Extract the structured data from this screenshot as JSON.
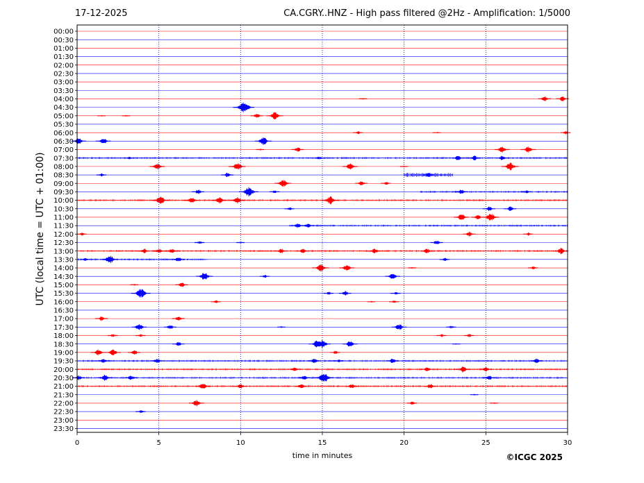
{
  "header": {
    "date": "17-12-2025",
    "title": "CA.CGRY..HNZ - High pass filtered @2Hz - Amplification: 1/5000"
  },
  "footer": {
    "copyright": "©ICGC 2025"
  },
  "colors": {
    "red": "#ff0000",
    "blue": "#0000ff",
    "grid": "#000080",
    "frame": "#000000"
  },
  "chart_data": {
    "type": "line",
    "title": "CA.CGRY..HNZ - High pass filtered @2Hz - Amplification: 1/5000",
    "xlabel": "time in minutes",
    "ylabel": "UTC (local time = UTC + 01:00)",
    "xlim": [
      0,
      30
    ],
    "x_ticks": [
      0,
      5,
      10,
      15,
      20,
      25,
      30
    ],
    "x_gridlines": [
      5,
      10,
      15,
      20,
      25
    ],
    "grid": true,
    "row_labels": [
      "00:00",
      "00:30",
      "01:00",
      "01:30",
      "02:00",
      "02:30",
      "03:00",
      "03:30",
      "04:00",
      "04:30",
      "05:00",
      "05:30",
      "06:00",
      "06:30",
      "07:00",
      "07:30",
      "08:00",
      "08:30",
      "09:00",
      "09:30",
      "10:00",
      "10:30",
      "11:00",
      "11:30",
      "12:00",
      "12:30",
      "13:00",
      "13:30",
      "14:00",
      "14:30",
      "15:00",
      "15:30",
      "16:00",
      "16:30",
      "17:00",
      "17:30",
      "18:00",
      "18:30",
      "19:00",
      "19:30",
      "20:00",
      "20:30",
      "21:00",
      "21:30",
      "22:00",
      "22:30",
      "23:00",
      "23:30"
    ],
    "series": [
      {
        "name": "",
        "color": "red"
      },
      {
        "name": "",
        "color": "blue"
      }
    ],
    "events": [
      {
        "row": "04:00",
        "t": 28.6,
        "amp": 3
      },
      {
        "row": "04:00",
        "t": 29.7,
        "amp": 3
      },
      {
        "row": "04:00",
        "t": 17.5,
        "amp": 1
      },
      {
        "row": "04:30",
        "t": 10.2,
        "amp": 7
      },
      {
        "row": "05:00",
        "t": 12.1,
        "amp": 5
      },
      {
        "row": "05:00",
        "t": 11.0,
        "amp": 3
      },
      {
        "row": "05:00",
        "t": 1.5,
        "amp": 1
      },
      {
        "row": "05:00",
        "t": 3.0,
        "amp": 1
      },
      {
        "row": "06:00",
        "t": 17.2,
        "amp": 2
      },
      {
        "row": "06:00",
        "t": 22.0,
        "amp": 1
      },
      {
        "row": "06:00",
        "t": 29.9,
        "amp": 2
      },
      {
        "row": "06:30",
        "t": 0.1,
        "amp": 4
      },
      {
        "row": "06:30",
        "t": 1.6,
        "amp": 4
      },
      {
        "row": "06:30",
        "t": 11.4,
        "amp": 5
      },
      {
        "row": "07:00",
        "t": 13.5,
        "amp": 3
      },
      {
        "row": "07:00",
        "t": 26.0,
        "amp": 4
      },
      {
        "row": "07:00",
        "t": 27.6,
        "amp": 4
      },
      {
        "row": "07:00",
        "t": 11.2,
        "amp": 1
      },
      {
        "row": "07:30",
        "t": 3.2,
        "amp": 2
      },
      {
        "row": "07:30",
        "t": 14.8,
        "amp": 2
      },
      {
        "row": "07:30",
        "t": 23.3,
        "amp": 3
      },
      {
        "row": "07:30",
        "t": 24.3,
        "amp": 3
      },
      {
        "row": "07:30",
        "t": 26.0,
        "amp": 3
      },
      {
        "row": "08:00",
        "t": 4.9,
        "amp": 4
      },
      {
        "row": "08:00",
        "t": 9.8,
        "amp": 5
      },
      {
        "row": "08:00",
        "t": 16.7,
        "amp": 4
      },
      {
        "row": "08:00",
        "t": 26.5,
        "amp": 5
      },
      {
        "row": "08:00",
        "t": 20.0,
        "amp": 1
      },
      {
        "row": "08:30",
        "t": 1.5,
        "amp": 2
      },
      {
        "row": "08:30",
        "t": 9.2,
        "amp": 3
      },
      {
        "row": "08:30",
        "t": 21.5,
        "amp": 3
      },
      {
        "row": "09:00",
        "t": 12.6,
        "amp": 5
      },
      {
        "row": "09:00",
        "t": 17.4,
        "amp": 3
      },
      {
        "row": "09:00",
        "t": 18.9,
        "amp": 2
      },
      {
        "row": "09:30",
        "t": 7.4,
        "amp": 3
      },
      {
        "row": "09:30",
        "t": 10.5,
        "amp": 6
      },
      {
        "row": "09:30",
        "t": 12.1,
        "amp": 2
      },
      {
        "row": "09:30",
        "t": 23.5,
        "amp": 3
      },
      {
        "row": "09:30",
        "t": 27.5,
        "amp": 2
      },
      {
        "row": "10:00",
        "t": 5.1,
        "amp": 5
      },
      {
        "row": "10:00",
        "t": 7.0,
        "amp": 4
      },
      {
        "row": "10:00",
        "t": 8.7,
        "amp": 4
      },
      {
        "row": "10:00",
        "t": 9.8,
        "amp": 4
      },
      {
        "row": "10:00",
        "t": 15.5,
        "amp": 5
      },
      {
        "row": "10:30",
        "t": 13.0,
        "amp": 2
      },
      {
        "row": "10:30",
        "t": 25.2,
        "amp": 3
      },
      {
        "row": "10:30",
        "t": 26.5,
        "amp": 3
      },
      {
        "row": "11:00",
        "t": 23.5,
        "amp": 4
      },
      {
        "row": "11:00",
        "t": 24.5,
        "amp": 3
      },
      {
        "row": "11:00",
        "t": 25.3,
        "amp": 5
      },
      {
        "row": "11:30",
        "t": 13.5,
        "amp": 3
      },
      {
        "row": "11:30",
        "t": 14.1,
        "amp": 3
      },
      {
        "row": "12:00",
        "t": 0.3,
        "amp": 2
      },
      {
        "row": "12:00",
        "t": 24.0,
        "amp": 3
      },
      {
        "row": "12:00",
        "t": 27.6,
        "amp": 2
      },
      {
        "row": "12:30",
        "t": 7.5,
        "amp": 2
      },
      {
        "row": "12:30",
        "t": 22.0,
        "amp": 3
      },
      {
        "row": "12:30",
        "t": 10.0,
        "amp": 1
      },
      {
        "row": "13:00",
        "t": 4.1,
        "amp": 3
      },
      {
        "row": "13:00",
        "t": 5.0,
        "amp": 3
      },
      {
        "row": "13:00",
        "t": 5.8,
        "amp": 3
      },
      {
        "row": "13:00",
        "t": 12.5,
        "amp": 3
      },
      {
        "row": "13:00",
        "t": 13.8,
        "amp": 3
      },
      {
        "row": "13:00",
        "t": 18.2,
        "amp": 3
      },
      {
        "row": "13:00",
        "t": 21.4,
        "amp": 3
      },
      {
        "row": "13:00",
        "t": 29.6,
        "amp": 4
      },
      {
        "row": "13:30",
        "t": 0.5,
        "amp": 2
      },
      {
        "row": "13:30",
        "t": 2.0,
        "amp": 5
      },
      {
        "row": "13:30",
        "t": 6.2,
        "amp": 3
      },
      {
        "row": "13:30",
        "t": 22.5,
        "amp": 2
      },
      {
        "row": "14:00",
        "t": 14.9,
        "amp": 5
      },
      {
        "row": "14:00",
        "t": 16.5,
        "amp": 4
      },
      {
        "row": "14:00",
        "t": 27.9,
        "amp": 2
      },
      {
        "row": "14:00",
        "t": 20.5,
        "amp": 1
      },
      {
        "row": "14:30",
        "t": 7.8,
        "amp": 5
      },
      {
        "row": "14:30",
        "t": 19.3,
        "amp": 4
      },
      {
        "row": "14:30",
        "t": 11.5,
        "amp": 2
      },
      {
        "row": "15:00",
        "t": 6.4,
        "amp": 3
      },
      {
        "row": "15:00",
        "t": 3.5,
        "amp": 1
      },
      {
        "row": "15:30",
        "t": 3.9,
        "amp": 6
      },
      {
        "row": "15:30",
        "t": 16.4,
        "amp": 3
      },
      {
        "row": "15:30",
        "t": 19.5,
        "amp": 2
      },
      {
        "row": "15:30",
        "t": 15.4,
        "amp": 2
      },
      {
        "row": "16:00",
        "t": 8.5,
        "amp": 2
      },
      {
        "row": "16:00",
        "t": 19.4,
        "amp": 2
      },
      {
        "row": "16:00",
        "t": 18.0,
        "amp": 1
      },
      {
        "row": "17:00",
        "t": 1.5,
        "amp": 3
      },
      {
        "row": "17:00",
        "t": 6.2,
        "amp": 3
      },
      {
        "row": "17:30",
        "t": 3.8,
        "amp": 4
      },
      {
        "row": "17:30",
        "t": 5.7,
        "amp": 3
      },
      {
        "row": "17:30",
        "t": 19.7,
        "amp": 4
      },
      {
        "row": "17:30",
        "t": 22.9,
        "amp": 2
      },
      {
        "row": "17:30",
        "t": 12.5,
        "amp": 1
      },
      {
        "row": "18:00",
        "t": 2.2,
        "amp": 2
      },
      {
        "row": "18:00",
        "t": 3.9,
        "amp": 2
      },
      {
        "row": "18:00",
        "t": 22.3,
        "amp": 2
      },
      {
        "row": "18:00",
        "t": 24.0,
        "amp": 2
      },
      {
        "row": "18:30",
        "t": 6.2,
        "amp": 3
      },
      {
        "row": "18:30",
        "t": 14.7,
        "amp": 5
      },
      {
        "row": "18:30",
        "t": 15.0,
        "amp": 5
      },
      {
        "row": "18:30",
        "t": 16.7,
        "amp": 4
      },
      {
        "row": "18:30",
        "t": 23.2,
        "amp": 1
      },
      {
        "row": "19:00",
        "t": 1.3,
        "amp": 4
      },
      {
        "row": "19:00",
        "t": 2.2,
        "amp": 4
      },
      {
        "row": "19:00",
        "t": 3.5,
        "amp": 3
      },
      {
        "row": "19:00",
        "t": 15.8,
        "amp": 2
      },
      {
        "row": "19:30",
        "t": 1.6,
        "amp": 3
      },
      {
        "row": "19:30",
        "t": 4.9,
        "amp": 3
      },
      {
        "row": "19:30",
        "t": 14.5,
        "amp": 3
      },
      {
        "row": "19:30",
        "t": 16.0,
        "amp": 2
      },
      {
        "row": "19:30",
        "t": 19.3,
        "amp": 3
      },
      {
        "row": "19:30",
        "t": 28.1,
        "amp": 3
      },
      {
        "row": "20:00",
        "t": 13.3,
        "amp": 3
      },
      {
        "row": "20:00",
        "t": 21.4,
        "amp": 3
      },
      {
        "row": "20:00",
        "t": 23.6,
        "amp": 4
      },
      {
        "row": "20:00",
        "t": 25.0,
        "amp": 3
      },
      {
        "row": "20:30",
        "t": 1.7,
        "amp": 4
      },
      {
        "row": "20:30",
        "t": 3.3,
        "amp": 3
      },
      {
        "row": "20:30",
        "t": 13.9,
        "amp": 3
      },
      {
        "row": "20:30",
        "t": 15.1,
        "amp": 6
      },
      {
        "row": "20:30",
        "t": 25.2,
        "amp": 3
      },
      {
        "row": "20:30",
        "t": 0.1,
        "amp": 3
      },
      {
        "row": "21:00",
        "t": 7.7,
        "amp": 4
      },
      {
        "row": "21:00",
        "t": 10.0,
        "amp": 3
      },
      {
        "row": "21:00",
        "t": 13.7,
        "amp": 3
      },
      {
        "row": "21:00",
        "t": 16.8,
        "amp": 3
      },
      {
        "row": "21:00",
        "t": 21.6,
        "amp": 3
      },
      {
        "row": "21:30",
        "t": 24.3,
        "amp": 1
      },
      {
        "row": "22:00",
        "t": 7.3,
        "amp": 4
      },
      {
        "row": "22:00",
        "t": 20.5,
        "amp": 2
      },
      {
        "row": "22:00",
        "t": 25.5,
        "amp": 1
      },
      {
        "row": "22:30",
        "t": 3.9,
        "amp": 2
      }
    ],
    "continuous_noise": [
      {
        "row": "07:30",
        "from": 0,
        "to": 30,
        "amp": 1
      },
      {
        "row": "08:30",
        "from": 20,
        "to": 23,
        "amp": 2
      },
      {
        "row": "09:30",
        "from": 21,
        "to": 30,
        "amp": 1
      },
      {
        "row": "10:00",
        "from": 0,
        "to": 30,
        "amp": 1
      },
      {
        "row": "11:30",
        "from": 13,
        "to": 30,
        "amp": 1
      },
      {
        "row": "13:00",
        "from": 0,
        "to": 30,
        "amp": 1
      },
      {
        "row": "13:30",
        "from": 0,
        "to": 8,
        "amp": 1
      },
      {
        "row": "19:30",
        "from": 0,
        "to": 30,
        "amp": 1
      },
      {
        "row": "20:00",
        "from": 0,
        "to": 30,
        "amp": 1
      },
      {
        "row": "20:30",
        "from": 0,
        "to": 30,
        "amp": 1
      },
      {
        "row": "21:00",
        "from": 0,
        "to": 30,
        "amp": 1
      }
    ]
  }
}
